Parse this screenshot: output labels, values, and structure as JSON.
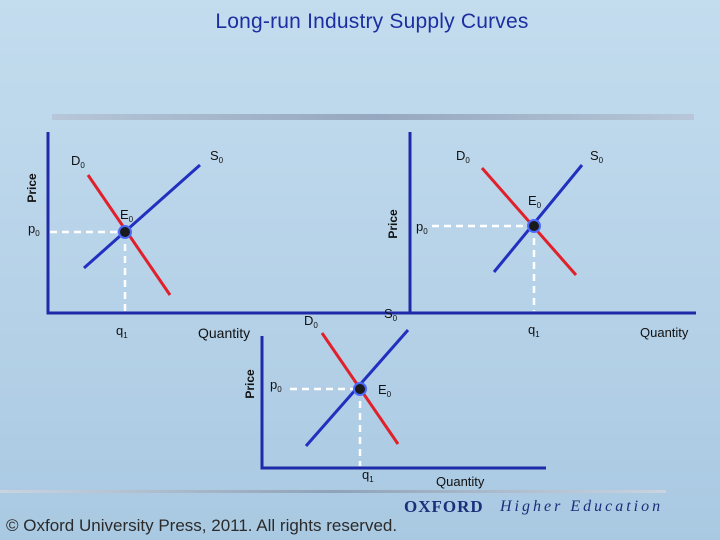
{
  "title": "Long-run Industry Supply Curves",
  "panels": [
    {
      "price_label": "Price",
      "quantity_label": "Quantity",
      "demand_label": "D",
      "demand_sub": "0",
      "supply_label": "S",
      "supply_sub": "0",
      "equilibrium_label": "E",
      "equilibrium_sub": "0",
      "price_tick": "p",
      "price_tick_sub": "0",
      "quantity_tick": "q",
      "quantity_tick_sub": "1"
    },
    {
      "price_label": "Price",
      "quantity_label": "Quantity",
      "demand_label": "D",
      "demand_sub": "0",
      "supply_label": "S",
      "supply_sub": "0",
      "equilibrium_label": "E",
      "equilibrium_sub": "0",
      "price_tick": "p",
      "price_tick_sub": "0",
      "quantity_tick": "q",
      "quantity_tick_sub": "1"
    },
    {
      "price_label": "Price",
      "quantity_label": "Quantity",
      "demand_label": "D",
      "demand_sub": "0",
      "supply_label": "S",
      "supply_sub": "0",
      "equilibrium_label": "E",
      "equilibrium_sub": "0",
      "price_tick": "p",
      "price_tick_sub": "0",
      "quantity_tick": "q",
      "quantity_tick_sub": "1"
    }
  ],
  "colors": {
    "axis": "#1f2aa8",
    "supply": "#2230c0",
    "demand": "#e0202a",
    "guide": "#ffffff"
  },
  "footer": {
    "copyright": "© Oxford University Press, 2011. All rights reserved.",
    "brand": "OXFORD",
    "tagline": "Higher Education"
  }
}
